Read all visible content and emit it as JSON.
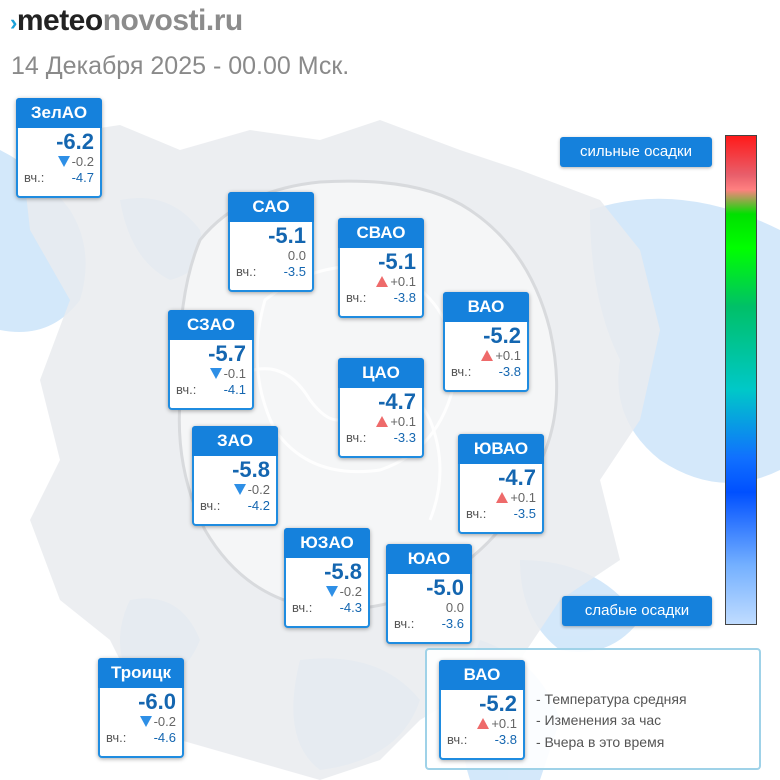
{
  "header": {
    "logo_prefix": "meteo",
    "logo_suffix": "novosti.ru",
    "datetime": "14 Декабря 2025 - 00.00 Мск."
  },
  "districts": [
    {
      "id": "zelao",
      "name": "ЗелАО",
      "temp": "-6.2",
      "trend": "down",
      "change": "-0.2",
      "yesterday_label": "вч.:",
      "yesterday": "-4.7"
    },
    {
      "id": "sao",
      "name": "САО",
      "temp": "-5.1",
      "trend": "none",
      "change": "0.0",
      "yesterday_label": "вч.:",
      "yesterday": "-3.5"
    },
    {
      "id": "svao",
      "name": "СВАО",
      "temp": "-5.1",
      "trend": "up",
      "change": "+0.1",
      "yesterday_label": "вч.:",
      "yesterday": "-3.8"
    },
    {
      "id": "vao",
      "name": "ВАО",
      "temp": "-5.2",
      "trend": "up",
      "change": "+0.1",
      "yesterday_label": "вч.:",
      "yesterday": "-3.8"
    },
    {
      "id": "szao",
      "name": "СЗАО",
      "temp": "-5.7",
      "trend": "down",
      "change": "-0.1",
      "yesterday_label": "вч.:",
      "yesterday": "-4.1"
    },
    {
      "id": "tsao",
      "name": "ЦАО",
      "temp": "-4.7",
      "trend": "up",
      "change": "+0.1",
      "yesterday_label": "вч.:",
      "yesterday": "-3.3"
    },
    {
      "id": "zao",
      "name": "ЗАО",
      "temp": "-5.8",
      "trend": "down",
      "change": "-0.2",
      "yesterday_label": "вч.:",
      "yesterday": "-4.2"
    },
    {
      "id": "yuvao",
      "name": "ЮВАО",
      "temp": "-4.7",
      "trend": "up",
      "change": "+0.1",
      "yesterday_label": "вч.:",
      "yesterday": "-3.5"
    },
    {
      "id": "yuzao",
      "name": "ЮЗАО",
      "temp": "-5.8",
      "trend": "down",
      "change": "-0.2",
      "yesterday_label": "вч.:",
      "yesterday": "-4.3"
    },
    {
      "id": "yuao",
      "name": "ЮАО",
      "temp": "-5.0",
      "trend": "none",
      "change": "0.0",
      "yesterday_label": "вч.:",
      "yesterday": "-3.6"
    },
    {
      "id": "troitsk",
      "name": "Троицк",
      "temp": "-6.0",
      "trend": "down",
      "change": "-0.2",
      "yesterday_label": "вч.:",
      "yesterday": "-4.6"
    }
  ],
  "precip_legend": {
    "strong": "сильные осадки",
    "weak": "слабые осадки"
  },
  "legend": {
    "sample": {
      "name": "ВАО",
      "temp": "-5.2",
      "trend": "up",
      "change": "+0.1",
      "yesterday_label": "вч.:",
      "yesterday": "-3.8"
    },
    "lines": [
      "- Температура средняя",
      "- Изменения за час",
      "- Вчера в это время"
    ]
  },
  "colors": {
    "card_header": "#1581dc",
    "temp_text": "#1466b0",
    "trend_up": "#ee6a6a",
    "trend_down": "#2e8fe6"
  }
}
